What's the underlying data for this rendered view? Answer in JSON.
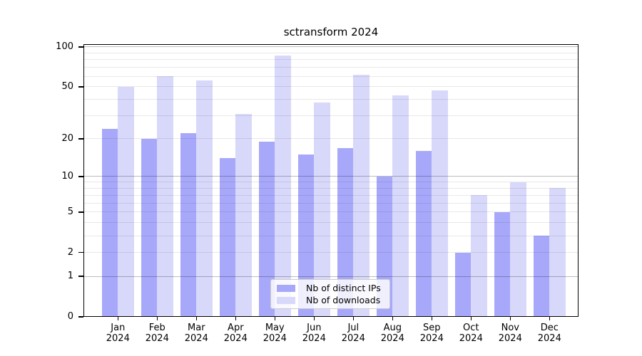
{
  "chart_data": {
    "type": "bar",
    "title": "sctransform 2024",
    "categories": [
      "Jan",
      "Feb",
      "Mar",
      "Apr",
      "May",
      "Jun",
      "Jul",
      "Aug",
      "Sep",
      "Oct",
      "Nov",
      "Dec"
    ],
    "year_label": "2024",
    "series": [
      {
        "name": "Nb of distinct IPs",
        "color": "#a8a8fa",
        "values": [
          24,
          20,
          22,
          14,
          19,
          15,
          17,
          10,
          16,
          2,
          5,
          3
        ]
      },
      {
        "name": "Nb of downloads",
        "color": "#d8d8fa",
        "values": [
          50,
          60,
          56,
          31,
          86,
          38,
          62,
          43,
          47,
          7,
          9,
          8
        ]
      }
    ],
    "xlabel": "",
    "ylabel": "",
    "yscale": "log1p",
    "ylim": [
      0,
      105
    ],
    "y_ticks": [
      0,
      1,
      2,
      5,
      10,
      20,
      50,
      100
    ],
    "major_gridlines": [
      1,
      10,
      100
    ],
    "minor_gridlines": [
      2,
      3,
      4,
      5,
      6,
      7,
      8,
      9,
      20,
      30,
      40,
      50,
      60,
      70,
      80,
      90
    ],
    "grid": "on",
    "legend_position": "bottom-center"
  },
  "colors": {
    "background": "#ffffff",
    "axis": "#000000",
    "text": "#000000",
    "legend_border": "#cccccc"
  }
}
